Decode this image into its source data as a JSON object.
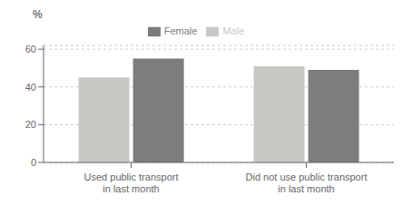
{
  "chart_data": {
    "type": "bar",
    "ylabel": "%",
    "categories": [
      "Used public transport\nin last month",
      "Did not use public transport\nin last month"
    ],
    "series": [
      {
        "name": "Male",
        "color": "#c8c8c4",
        "values": [
          45,
          51
        ]
      },
      {
        "name": "Female",
        "color": "#7d7d7d",
        "values": [
          55,
          49
        ]
      }
    ],
    "ylim": [
      0,
      62
    ],
    "yticks": [
      0,
      20,
      40,
      60
    ],
    "grid": true,
    "legend": "top"
  }
}
